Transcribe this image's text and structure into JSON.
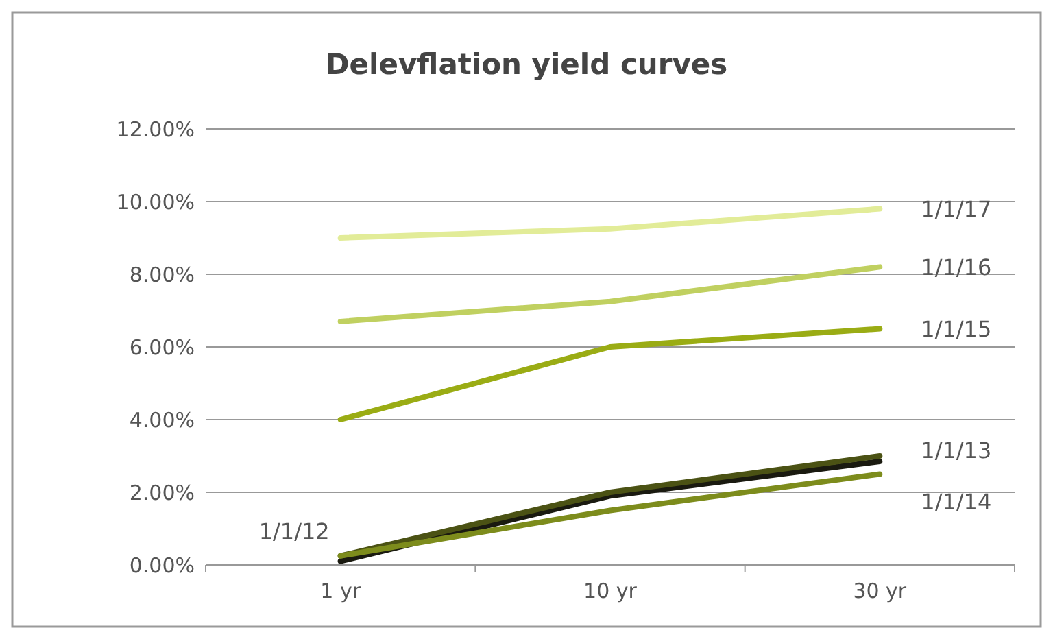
{
  "chart_data": {
    "type": "line",
    "title": "Delevflation yield curves",
    "categories": [
      "1 yr",
      "10 yr",
      "30 yr"
    ],
    "series": [
      {
        "name": "1/1/12",
        "color": "#1a1a10",
        "values": [
          0.1,
          1.9,
          2.85
        ]
      },
      {
        "name": "1/1/13",
        "color": "#4b5214",
        "values": [
          0.25,
          2.0,
          3.0
        ]
      },
      {
        "name": "1/1/14",
        "color": "#7d8c1c",
        "values": [
          0.25,
          1.5,
          2.5
        ]
      },
      {
        "name": "1/1/15",
        "color": "#9aac14",
        "values": [
          4.0,
          6.0,
          6.5
        ]
      },
      {
        "name": "1/1/16",
        "color": "#c0d060",
        "values": [
          6.7,
          7.25,
          8.2
        ]
      },
      {
        "name": "1/1/17",
        "color": "#e2ec98",
        "values": [
          9.0,
          9.25,
          9.8
        ]
      }
    ],
    "ylim": [
      0,
      12
    ],
    "yticks": [
      {
        "value": 0,
        "label": "0.00%"
      },
      {
        "value": 2,
        "label": "2.00%"
      },
      {
        "value": 4,
        "label": "4.00%"
      },
      {
        "value": 6,
        "label": "6.00%"
      },
      {
        "value": 8,
        "label": "8.00%"
      },
      {
        "value": 10,
        "label": "10.00%"
      },
      {
        "value": 12,
        "label": "12.00%"
      }
    ],
    "grid": "y",
    "marker": "none",
    "line_style": "solid"
  }
}
